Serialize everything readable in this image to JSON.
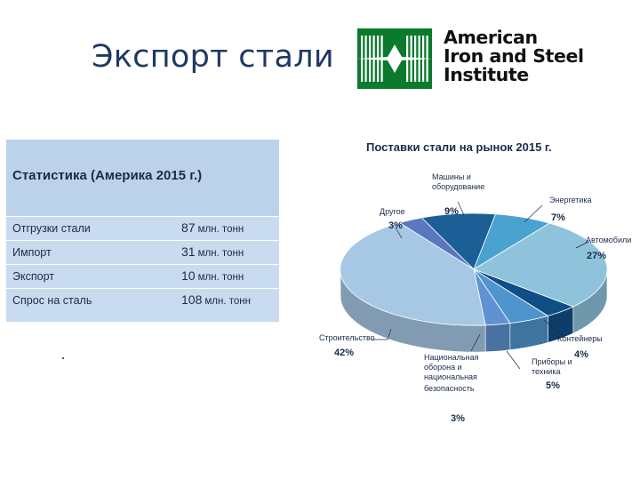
{
  "slide": {
    "title": "Экспорт стали"
  },
  "logo": {
    "lines": [
      "American",
      "Iron and Steel",
      "Institute"
    ]
  },
  "stats": {
    "title": "Статистика (Америка 2015 г.)",
    "rows": [
      {
        "label": "Отгрузки стали",
        "value": "87",
        "unit": "млн. тонн"
      },
      {
        "label": "Импорт",
        "value": "31",
        "unit": "млн. тонн"
      },
      {
        "label": "Экспорт",
        "value": "10",
        "unit": "млн. тонн"
      },
      {
        "label": "Спрос на сталь",
        "value": "108",
        "unit": "млн. тонн"
      }
    ]
  },
  "chart_data": {
    "type": "pie",
    "title": "Поставки стали на рынок 2015 г.",
    "series": [
      {
        "label": "Машины и оборудование",
        "value": 9,
        "pct": "9%",
        "color": "#1b5f96"
      },
      {
        "label": "Энергетика",
        "value": 7,
        "pct": "7%",
        "color": "#4aa3cf"
      },
      {
        "label": "Автомобили",
        "value": 27,
        "pct": "27%",
        "color": "#8fc3dc"
      },
      {
        "label": "Контейнеры",
        "value": 4,
        "pct": "4%",
        "color": "#0f4f86"
      },
      {
        "label": "Приборы и техника",
        "value": 5,
        "pct": "5%",
        "color": "#4f95cd"
      },
      {
        "label": "Национальная оборона и национальная безопасность",
        "value": 3,
        "pct": "3%",
        "color": "#5e92d0"
      },
      {
        "label": "Строительство",
        "value": 42,
        "pct": "42%",
        "color": "#a6c8e4"
      },
      {
        "label": "Другое",
        "value": 3,
        "pct": "3%",
        "color": "#5b78bf"
      }
    ]
  }
}
